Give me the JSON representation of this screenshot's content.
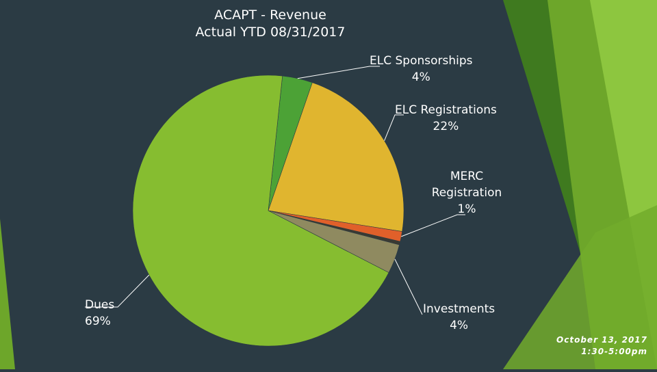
{
  "slide": {
    "title_line1": "ACAPT - Revenue",
    "title_line2": "Actual YTD 08/31/2017",
    "date_line1": "October 13, 2017",
    "date_line2": "1:30-5:00pm"
  },
  "colors": {
    "background": "#2b3b44",
    "accent_green": "#8dc63f",
    "dark_green": "#3f7a1f"
  },
  "chart_data": {
    "type": "pie",
    "title": "ACAPT - Revenue Actual YTD 08/31/2017",
    "slices": [
      {
        "label": "ELC Sponsorships",
        "pct_label": "4%",
        "value": 3.6,
        "color": "#4ca236"
      },
      {
        "label": "ELC Registrations",
        "pct_label": "22%",
        "value": 22.2,
        "color": "#e0b52f"
      },
      {
        "label": "MERC Registration",
        "pct_label": "1%",
        "value": 1.2,
        "color": "#e0602a"
      },
      {
        "label": "",
        "pct_label": "",
        "value": 0.4,
        "color": "#3a3a32"
      },
      {
        "label": "Investments",
        "pct_label": "4%",
        "value": 3.5,
        "color": "#8f8a60"
      },
      {
        "label": "Dues",
        "pct_label": "69%",
        "value": 69.1,
        "color": "#86bd30"
      }
    ]
  }
}
